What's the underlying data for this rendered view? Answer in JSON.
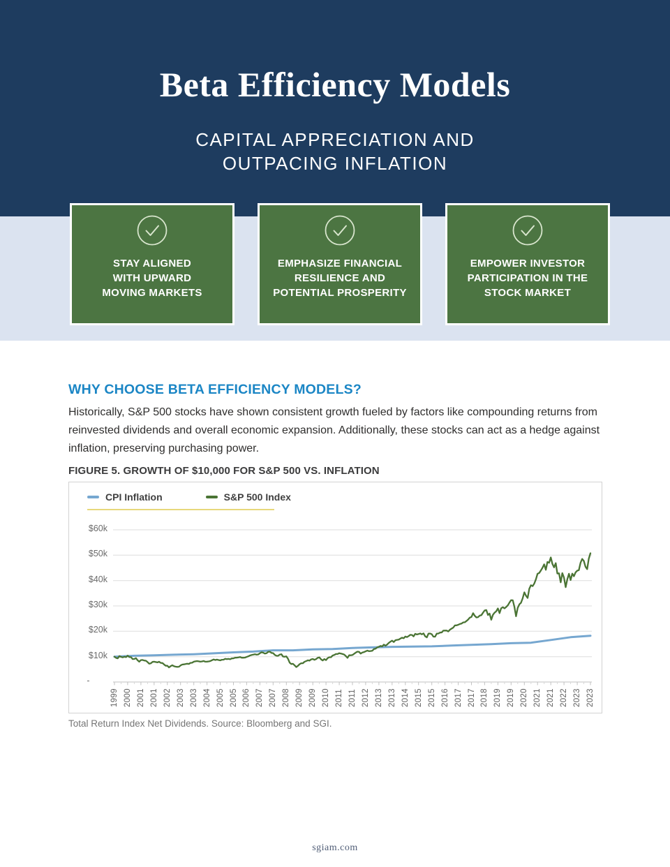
{
  "header": {
    "title": "Beta Efficiency Models",
    "subtitle": "CAPITAL APPRECIATION AND\nOUTPACING INFLATION"
  },
  "benefits": [
    {
      "icon": "check-circle",
      "label": "STAY ALIGNED\nWITH UPWARD\nMOVING MARKETS"
    },
    {
      "icon": "check-circle",
      "label": "EMPHASIZE FINANCIAL\nRESILIENCE AND\nPOTENTIAL PROSPERITY"
    },
    {
      "icon": "check-circle",
      "label": "EMPOWER INVESTOR\nPARTICIPATION IN THE\nSTOCK MARKET"
    }
  ],
  "main": {
    "heading": "WHY CHOOSE BETA EFFICIENCY MODELS?",
    "paragraph": "Historically, S&P 500 stocks have shown consistent growth fueled by factors like compounding returns from reinvested dividends and overall economic expansion. Additionally, these stocks can act as a hedge against inflation, preserving purchasing power."
  },
  "figure": {
    "title": "FIGURE 5. GROWTH OF $10,000 FOR S&P 500 VS. INFLATION",
    "source_note": "Total Return Index Net Dividends. Source: Bloomberg and SGI."
  },
  "footer": {
    "website": "sgiam.com"
  },
  "colors": {
    "header_navy": "#1e3c5f",
    "band_blue": "#dbe3f0",
    "benefit_green": "#4c7542",
    "heading_blue": "#1b86c5",
    "chart_cpi_blue": "#76a7d0",
    "chart_sp500_green": "#4a7434",
    "legend_rule_yellow": "#e7d87b",
    "gridline_gray": "#dedede"
  },
  "chart_data": {
    "type": "line",
    "title": "FIGURE 5. GROWTH OF $10,000 FOR S&P 500 VS. INFLATION",
    "grid": "horizontal",
    "legend_position": "top-left",
    "legend": [
      {
        "label": "CPI Inflation",
        "color": "#76a7d0"
      },
      {
        "label": "S&P 500 Index",
        "color": "#4a7434"
      }
    ],
    "ylim": [
      0,
      60000
    ],
    "y_axis": {
      "ticks": [
        {
          "label": "$60k",
          "value_k": 60
        },
        {
          "label": "$50k",
          "value_k": 50
        },
        {
          "label": "$40k",
          "value_k": 40
        },
        {
          "label": "$30k",
          "value_k": 30
        },
        {
          "label": "$20k",
          "value_k": 20
        },
        {
          "label": "$10k",
          "value_k": 10
        },
        {
          "label": "-",
          "value_k": 0
        }
      ]
    },
    "x_axis": {
      "span_months": 288,
      "label_interval_months": 8,
      "minor_tick_interval_months": 4,
      "labels": [
        "1999",
        "2000",
        "2001",
        "2001",
        "2002",
        "2003",
        "2003",
        "2004",
        "2005",
        "2005",
        "2006",
        "2007",
        "2007",
        "2008",
        "2009",
        "2009",
        "2010",
        "2011",
        "2011",
        "2012",
        "2013",
        "2013",
        "2014",
        "2015",
        "2015",
        "2016",
        "2017",
        "2017",
        "2018",
        "2019",
        "2019",
        "2020",
        "2021",
        "2021",
        "2022",
        "2023",
        "2023"
      ]
    },
    "series": [
      {
        "name": "CPI Inflation",
        "color": "#76a7d0",
        "stroke_width": 3,
        "interval_months": 12,
        "values_k": [
          10.0,
          10.34,
          10.51,
          10.76,
          10.96,
          11.32,
          11.71,
          12.0,
          12.49,
          12.5,
          12.84,
          13.03,
          13.42,
          13.65,
          13.86,
          13.97,
          14.07,
          14.36,
          14.66,
          14.94,
          15.29,
          15.5,
          16.58,
          17.66,
          18.26
        ]
      },
      {
        "name": "S&P 500 Index",
        "color": "#4a7434",
        "stroke_width": 2.3,
        "interval_months": 1,
        "values_k": [
          10.0,
          9.5,
          9.32,
          10.23,
          9.92,
          9.72,
          9.96,
          9.8,
          10.41,
          9.86,
          9.82,
          9.05,
          9.09,
          9.41,
          8.55,
          8.01,
          8.63,
          8.69,
          8.48,
          8.39,
          7.86,
          7.23,
          7.37,
          7.93,
          8.0,
          7.88,
          7.73,
          8.02,
          7.53,
          7.48,
          6.94,
          6.4,
          6.44,
          5.74,
          6.25,
          6.61,
          6.22,
          6.06,
          5.97,
          6.03,
          6.52,
          6.87,
          6.95,
          7.08,
          7.22,
          7.14,
          7.54,
          7.61,
          8.01,
          8.16,
          8.27,
          8.15,
          8.02,
          8.13,
          8.29,
          8.02,
          8.05,
          8.13,
          8.26,
          8.59,
          8.88,
          8.66,
          8.84,
          8.68,
          8.52,
          8.79,
          8.8,
          9.13,
          9.04,
          9.11,
          8.96,
          9.3,
          9.33,
          9.58,
          9.6,
          9.72,
          9.85,
          9.57,
          9.58,
          9.64,
          9.87,
          10.12,
          10.45,
          10.65,
          10.8,
          10.96,
          10.75,
          10.87,
          11.35,
          11.75,
          11.55,
          11.19,
          11.36,
          11.9,
          11.97,
          11.47,
          11.39,
          10.71,
          10.36,
          10.32,
          10.82,
          10.96,
          10.04,
          9.95,
          10.1,
          9.2,
          7.66,
          7.11,
          7.19,
          6.58,
          5.88,
          6.39,
          7.01,
          7.4,
          7.41,
          7.97,
          8.26,
          8.57,
          8.41,
          8.91,
          9.08,
          8.75,
          9.02,
          9.57,
          9.72,
          8.94,
          8.47,
          9.06,
          8.65,
          9.42,
          9.78,
          9.78,
          10.43,
          10.68,
          11.04,
          11.04,
          11.37,
          11.24,
          11.05,
          10.82,
          10.24,
          9.52,
          10.56,
          10.53,
          10.64,
          11.12,
          11.6,
          11.98,
          11.9,
          11.19,
          11.65,
          11.81,
          12.08,
          12.39,
          12.16,
          12.23,
          12.34,
          12.98,
          13.15,
          13.64,
          13.91,
          14.23,
          14.04,
          14.75,
          14.32,
          14.77,
          15.45,
          15.92,
          16.32,
          15.76,
          16.48,
          16.62,
          16.74,
          17.13,
          17.49,
          17.25,
          17.94,
          17.69,
          18.12,
          18.61,
          18.56,
          18.0,
          19.03,
          18.73,
          18.91,
          19.16,
          18.79,
          19.18,
          18.02,
          17.58,
          19.06,
          19.12,
          18.82,
          17.88,
          17.86,
          19.07,
          19.14,
          19.49,
          19.54,
          20.26,
          20.29,
          20.29,
          19.92,
          20.65,
          21.06,
          21.46,
          22.31,
          22.34,
          22.57,
          22.88,
          23.03,
          23.5,
          23.57,
          24.06,
          24.62,
          25.37,
          25.66,
          27.13,
          26.13,
          25.47,
          25.56,
          26.18,
          26.34,
          27.32,
          28.21,
          28.37,
          26.43,
          26.97,
          24.54,
          26.5,
          27.35,
          27.88,
          29.01,
          27.17,
          29.08,
          29.5,
          29.03,
          29.57,
          30.21,
          31.31,
          32.25,
          32.23,
          29.58,
          25.93,
          29.25,
          30.64,
          31.25,
          33.01,
          35.38,
          34.04,
          33.13,
          36.76,
          38.17,
          37.78,
          38.82,
          40.52,
          42.68,
          42.98,
          43.98,
          45.03,
          46.4,
          44.24,
          47.34,
          47.01,
          49.12,
          46.58,
          45.19,
          46.86,
          42.77,
          42.85,
          39.31,
          42.93,
          41.18,
          37.39,
          40.42,
          42.68,
          40.22,
          42.74,
          41.7,
          43.23,
          43.91,
          44.1,
          47.01,
          48.52,
          47.75,
          45.47,
          44.51,
          48.58,
          50.77
        ]
      }
    ]
  }
}
